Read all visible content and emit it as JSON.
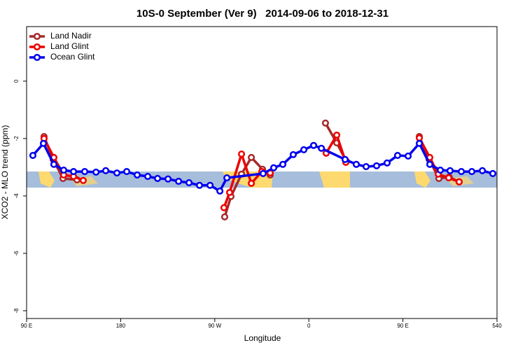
{
  "chart_data": {
    "type": "line",
    "title": "10S-0 September (Ver 9)   2014-09-06 to 2018-12-31",
    "x_label": "Longitude",
    "y_label": "XCO2 - MLO trend (ppm)",
    "xlim": [
      90,
      540
    ],
    "ylim": [
      -8.27,
      1.9
    ],
    "xticks": [
      {
        "value": 90,
        "label": "90 E"
      },
      180,
      {
        "value": 270,
        "label": "90 W"
      },
      {
        "value": 360,
        "label": "0"
      },
      {
        "value": 450,
        "label": "90 E"
      },
      540
    ],
    "yticks": [
      0,
      -2,
      -4,
      -6,
      -8
    ],
    "legend": "top-left",
    "series": [
      {
        "name": "Land Nadir",
        "color": "#a52a2a",
        "x": [
          106.7,
          115.4,
          124.8,
          138.2,
          200,
          279.5,
          285.5,
          295.6,
          305.0,
          315.7,
          323.0,
          350,
          375.9,
          386.7,
          396.0,
          430,
          465.7,
          475.1,
          484.4,
          494.2,
          503.8
        ],
        "values": [
          -1.93,
          -2.73,
          -3.39,
          -3.44,
          null,
          -4.73,
          -4.02,
          -3.24,
          -2.66,
          -3.07,
          -3.27,
          null,
          -1.46,
          -2.15,
          -2.8,
          null,
          -1.93,
          -2.73,
          -3.39,
          -3.34,
          -3.51
        ]
      },
      {
        "name": "Land Glint",
        "color": "#ee0000",
        "x": [
          106.7,
          116.1,
          125.5,
          134.9,
          144.2,
          200,
          278.8,
          284.2,
          295.6,
          305.0,
          315.0,
          323.0,
          350,
          376.6,
          386.7,
          395.4,
          430,
          465.7,
          475.7,
          483.8,
          493.8,
          503.8
        ],
        "values": [
          -2.0,
          -2.66,
          -3.27,
          -3.32,
          -3.46,
          null,
          -4.41,
          -3.88,
          -2.54,
          -3.56,
          -3.15,
          -3.2,
          null,
          -2.51,
          -1.88,
          -2.83,
          null,
          -1.98,
          -2.66,
          -3.24,
          -3.37,
          -3.51
        ]
      },
      {
        "name": "Ocean Glint",
        "color": "#0000ee",
        "x": [
          96.0,
          106.1,
          116.1,
          125.5,
          134.9,
          145.6,
          156.4,
          165.7,
          176.4,
          185.8,
          195.8,
          205.9,
          215.3,
          225.3,
          235.4,
          245.4,
          255.4,
          265.5,
          274.9,
          281.6,
          316.3,
          326.4,
          335.1,
          345.1,
          355.2,
          364.6,
          372.0,
          394.7,
          405.4,
          414.8,
          424.8,
          434.9,
          444.9,
          455.0,
          465.7,
          475.7,
          485.8,
          495.1,
          505.9,
          515.9,
          526.0,
          536.0
        ],
        "values": [
          -2.59,
          -2.17,
          -2.9,
          -3.1,
          -3.15,
          -3.15,
          -3.17,
          -3.12,
          -3.2,
          -3.15,
          -3.27,
          -3.32,
          -3.39,
          -3.41,
          -3.49,
          -3.54,
          -3.63,
          -3.63,
          -3.83,
          -3.37,
          -3.22,
          -3.02,
          -2.9,
          -2.56,
          -2.39,
          -2.24,
          -2.34,
          -2.73,
          -2.9,
          -2.98,
          -2.95,
          -2.85,
          -2.59,
          -2.61,
          -2.17,
          -2.9,
          -3.1,
          -3.12,
          -3.15,
          -3.15,
          -3.12,
          -3.22
        ]
      }
    ]
  }
}
